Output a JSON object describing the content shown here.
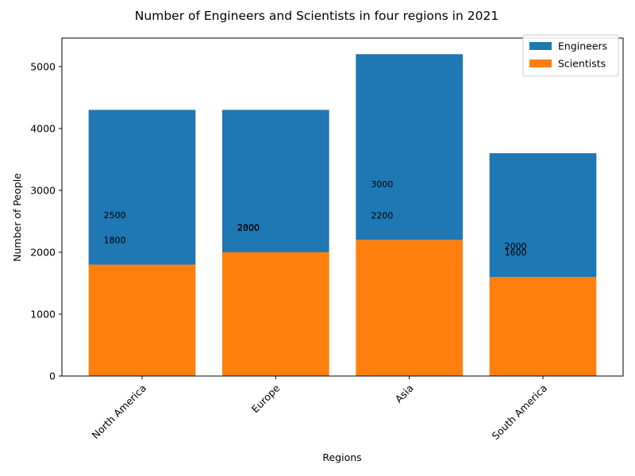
{
  "chart_data": {
    "type": "bar",
    "stacked": true,
    "title": "Number of Engineers and Scientists in four regions in 2021",
    "xlabel": "Regions",
    "ylabel": "Number of People",
    "categories": [
      "North America",
      "Europe",
      "Asia",
      "South America"
    ],
    "series": [
      {
        "name": "Engineers",
        "values": [
          2500,
          2300,
          3000,
          2000
        ],
        "color": "#1f77b4"
      },
      {
        "name": "Scientists",
        "values": [
          1800,
          2000,
          2200,
          1600
        ],
        "color": "#ff7f0e"
      }
    ],
    "ylim": [
      0,
      5460
    ],
    "yticks": [
      0,
      1000,
      2000,
      3000,
      4000,
      5000
    ],
    "legend_position": "top-right",
    "grid": false,
    "x_tick_rotation": 45
  }
}
